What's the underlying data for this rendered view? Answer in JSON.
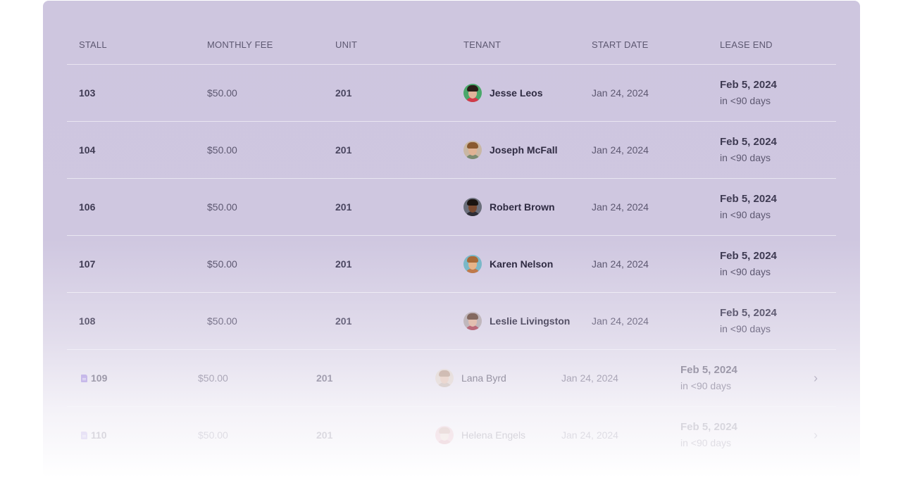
{
  "table": {
    "headers": {
      "stall": "STALL",
      "fee": "MONTHLY FEE",
      "unit": "UNIT",
      "tenant": "TENANT",
      "start": "START DATE",
      "lease_end": "LEASE END"
    },
    "rows": [
      {
        "stall": "103",
        "fee": "$50.00",
        "unit": "201",
        "tenant": "Jesse Leos",
        "start": "Jan 24, 2024",
        "lease_end": "Feb 5, 2024",
        "lease_note": "in <90 days"
      },
      {
        "stall": "104",
        "fee": "$50.00",
        "unit": "201",
        "tenant": "Joseph McFall",
        "start": "Jan 24, 2024",
        "lease_end": "Feb 5, 2024",
        "lease_note": "in <90 days"
      },
      {
        "stall": "106",
        "fee": "$50.00",
        "unit": "201",
        "tenant": "Robert Brown",
        "start": "Jan 24, 2024",
        "lease_end": "Feb 5, 2024",
        "lease_note": "in <90 days"
      },
      {
        "stall": "107",
        "fee": "$50.00",
        "unit": "201",
        "tenant": "Karen Nelson",
        "start": "Jan 24, 2024",
        "lease_end": "Feb 5, 2024",
        "lease_note": "in <90 days"
      },
      {
        "stall": "108",
        "fee": "$50.00",
        "unit": "201",
        "tenant": "Leslie Livingston",
        "start": "Jan 24, 2024",
        "lease_end": "Feb 5, 2024",
        "lease_note": "in <90 days"
      },
      {
        "stall": "109",
        "fee": "$50.00",
        "unit": "201",
        "tenant": "Lana Byrd",
        "start": "Jan 24, 2024",
        "lease_end": "Feb 5, 2024",
        "lease_note": "in <90 days"
      },
      {
        "stall": "110",
        "fee": "$50.00",
        "unit": "201",
        "tenant": "Helena Engels",
        "start": "Jan 24, 2024",
        "lease_end": "Feb 5, 2024",
        "lease_note": "in <90 days"
      }
    ]
  },
  "icons": {
    "row_icon": "document-icon",
    "row_action": "chevron-right-icon"
  },
  "colors": {
    "card_bg": "#cec6df",
    "accent_icon": "#9b80e0",
    "text_dark": "#3e3a52"
  }
}
